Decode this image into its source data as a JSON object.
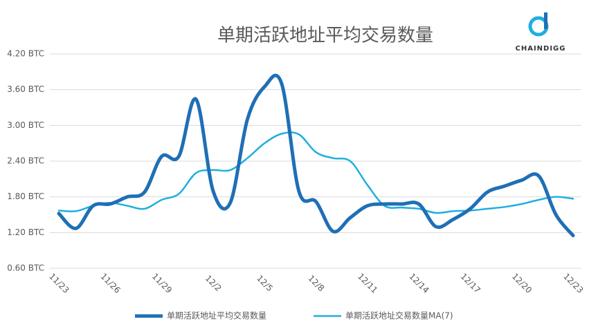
{
  "logo": "CHAINDIGG",
  "chart_data": {
    "type": "line",
    "title": "单期活跃地址平均交易数量",
    "categories": [
      "11/23",
      null,
      null,
      "11/26",
      null,
      null,
      "11/29",
      null,
      null,
      "12/2",
      null,
      null,
      "12/5",
      null,
      null,
      "12/8",
      null,
      null,
      "12/11",
      null,
      null,
      "12/14",
      null,
      null,
      "12/17",
      null,
      null,
      "12/20",
      null,
      null,
      "12/23"
    ],
    "series": [
      {
        "name": "单期活跃地址平均交易数量",
        "color": "#1f6fb5",
        "values": [
          1.52,
          1.27,
          1.65,
          1.68,
          1.8,
          1.88,
          2.48,
          2.48,
          3.44,
          1.9,
          1.7,
          3.1,
          3.65,
          3.7,
          1.9,
          1.72,
          1.22,
          1.45,
          1.65,
          1.68,
          1.68,
          1.68,
          1.3,
          1.42,
          1.6,
          1.88,
          1.98,
          2.08,
          2.15,
          1.5,
          1.15
        ]
      },
      {
        "name": "单期活跃地址交易数量MA(7)",
        "color": "#1eaee0",
        "values": [
          1.57,
          1.56,
          1.65,
          1.7,
          1.65,
          1.6,
          1.75,
          1.85,
          2.2,
          2.25,
          2.25,
          2.45,
          2.7,
          2.86,
          2.85,
          2.55,
          2.45,
          2.4,
          2.0,
          1.65,
          1.62,
          1.6,
          1.53,
          1.56,
          1.57,
          1.6,
          1.63,
          1.68,
          1.75,
          1.8,
          1.77
        ]
      }
    ],
    "ylim": [
      0.6,
      4.2
    ],
    "yticks": [
      {
        "value": 0.6,
        "label": "0.60 BTC"
      },
      {
        "value": 1.2,
        "label": "1.20 BTC"
      },
      {
        "value": 1.8,
        "label": "1.80 BTC"
      },
      {
        "value": 2.4,
        "label": "2.40 BTC"
      },
      {
        "value": 3.0,
        "label": "3.00 BTC"
      },
      {
        "value": 3.6,
        "label": "3.60 BTC"
      },
      {
        "value": 4.2,
        "label": "4.20 BTC"
      }
    ],
    "grid": true,
    "legend": "bottom"
  }
}
